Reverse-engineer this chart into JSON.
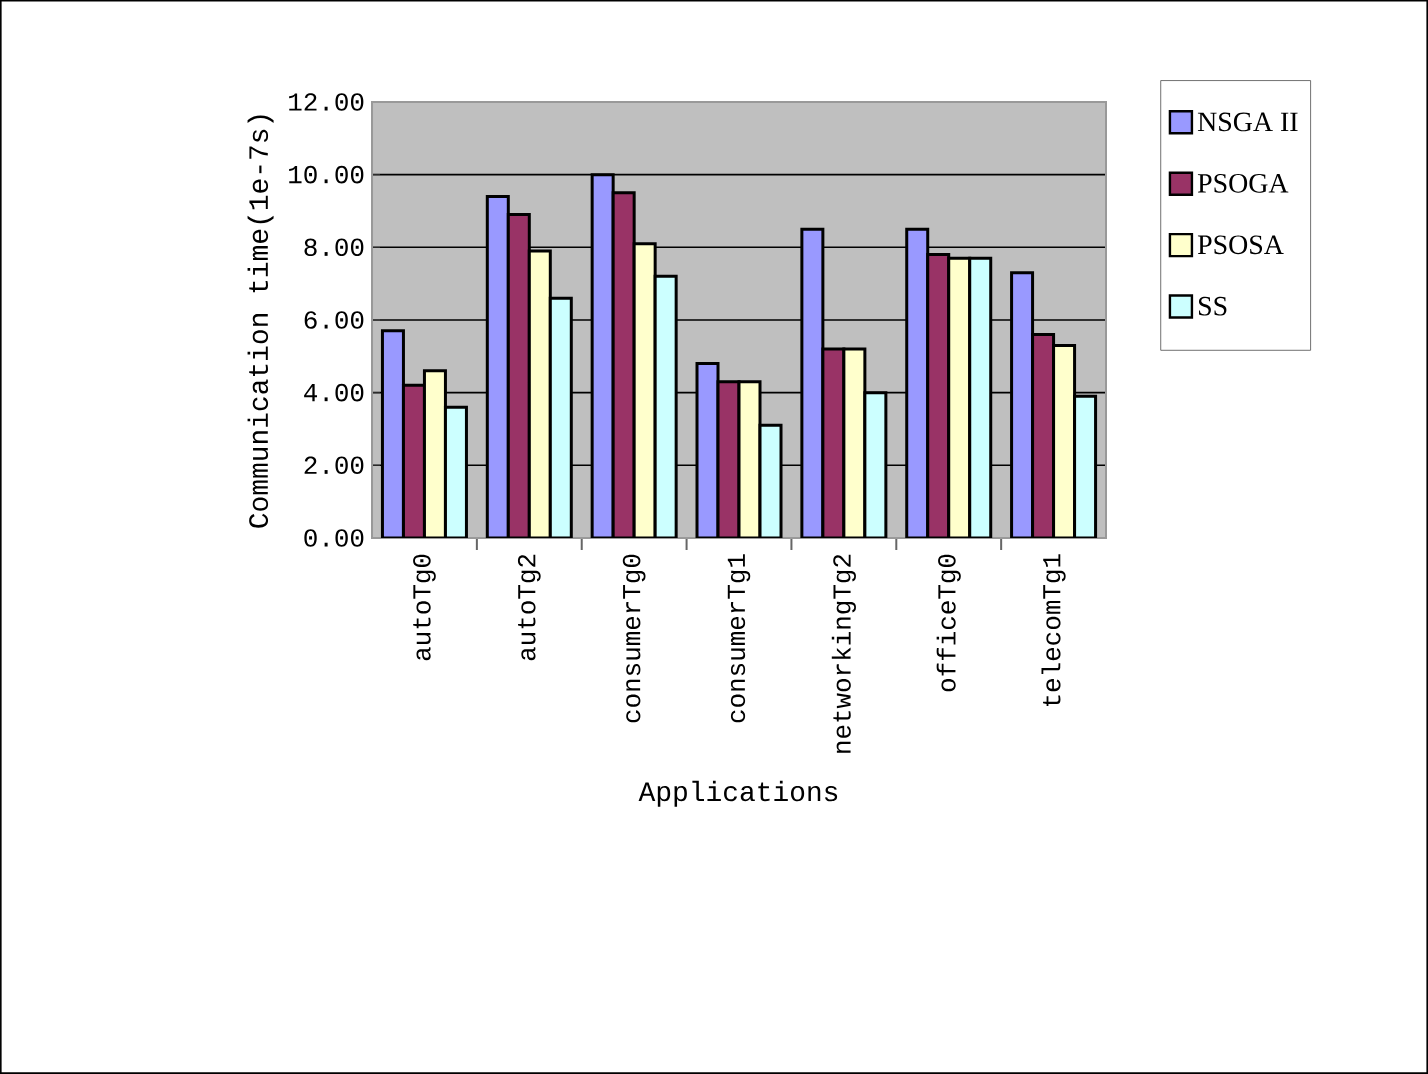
{
  "chart_data": {
    "type": "bar",
    "xlabel": "Applications",
    "ylabel": "Communication time(1e-7s)",
    "categories": [
      "autoTg0",
      "autoTg2",
      "consumerTg0",
      "consumerTg1",
      "networkingTg2",
      "officeTg0",
      "telecomTg1"
    ],
    "series": [
      {
        "name": "NSGA II",
        "color": "#9999ff",
        "values": [
          5.7,
          9.4,
          10.0,
          4.8,
          8.5,
          8.5,
          7.3
        ]
      },
      {
        "name": "PSOGA",
        "color": "#993366",
        "values": [
          4.2,
          8.9,
          9.5,
          4.3,
          5.2,
          7.8,
          5.6
        ]
      },
      {
        "name": "PSOSA",
        "color": "#ffffcc",
        "values": [
          4.6,
          7.9,
          8.1,
          4.3,
          5.2,
          7.7,
          5.3
        ]
      },
      {
        "name": "SS",
        "color": "#ccffff",
        "values": [
          3.6,
          6.6,
          7.2,
          3.1,
          4.0,
          7.7,
          3.9
        ]
      }
    ],
    "ylim": [
      0,
      12
    ],
    "yticks": [
      {
        "value": 0,
        "label": "0.00"
      },
      {
        "value": 2,
        "label": "2.00"
      },
      {
        "value": 4,
        "label": "4.00"
      },
      {
        "value": 6,
        "label": "6.00"
      },
      {
        "value": 8,
        "label": "8.00"
      },
      {
        "value": 10,
        "label": "10.00"
      },
      {
        "value": 12,
        "label": "12.00"
      }
    ],
    "grid": "y",
    "legend": "right"
  }
}
